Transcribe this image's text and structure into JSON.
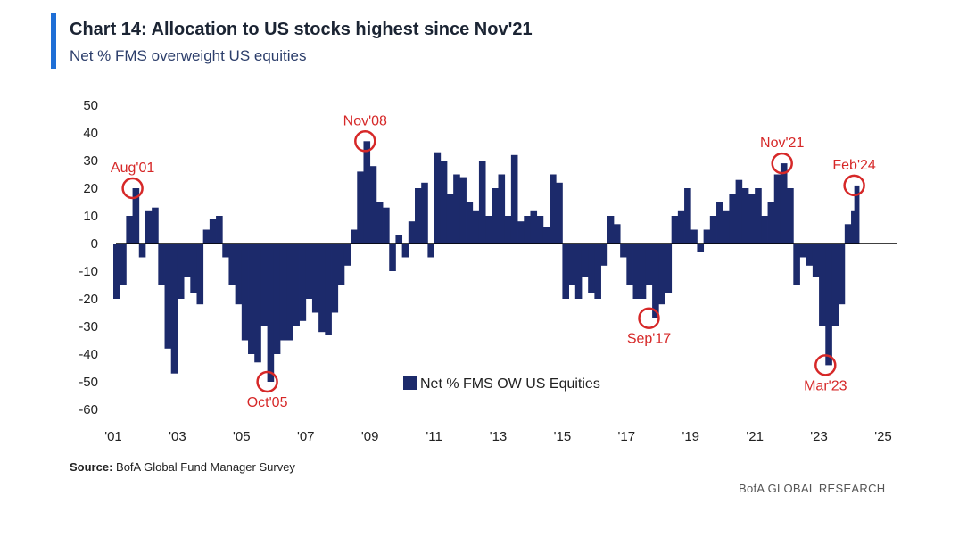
{
  "header": {
    "title": "Chart 14: Allocation to US stocks highest since Nov'21",
    "subtitle": "Net % FMS overweight US equities"
  },
  "footer": {
    "source_label": "Source:",
    "source_text": "BofA Global Fund Manager Survey",
    "brand": "BofA GLOBAL RESEARCH"
  },
  "colors": {
    "bar": "#1c2a6b",
    "annotation": "#d62828",
    "accent": "#1f6fd6",
    "axis": "#000000"
  },
  "chart_data": {
    "type": "bar",
    "title": "Chart 14: Allocation to US stocks highest since Nov'21",
    "subtitle": "Net % FMS overweight US equities",
    "ylim": [
      -60,
      50
    ],
    "yticks": [
      50,
      40,
      30,
      20,
      10,
      0,
      -10,
      -20,
      -30,
      -40,
      -50,
      -60
    ],
    "x_range": [
      2001.0,
      2025.0
    ],
    "xticks": [
      "'01",
      "'03",
      "'05",
      "'07",
      "'09",
      "'11",
      "'13",
      "'15",
      "'17",
      "'19",
      "'21",
      "'23",
      "'25"
    ],
    "legend": {
      "label": "Net % FMS OW US Equities",
      "position": "bottom-center"
    },
    "annotations": [
      {
        "label": "Aug'01",
        "x": 2001.6,
        "y": 20
      },
      {
        "label": "Oct'05",
        "x": 2005.8,
        "y": -50
      },
      {
        "label": "Nov'08",
        "x": 2008.85,
        "y": 37
      },
      {
        "label": "Sep'17",
        "x": 2017.7,
        "y": -27
      },
      {
        "label": "Nov'21",
        "x": 2021.85,
        "y": 29
      },
      {
        "label": "Mar'23",
        "x": 2023.2,
        "y": -44
      },
      {
        "label": "Feb'24",
        "x": 2024.1,
        "y": 21
      }
    ],
    "series": [
      {
        "name": "Net % FMS OW US Equities",
        "points": [
          [
            2001.0,
            -20
          ],
          [
            2001.2,
            -15
          ],
          [
            2001.4,
            10
          ],
          [
            2001.6,
            20
          ],
          [
            2001.8,
            -5
          ],
          [
            2002.0,
            12
          ],
          [
            2002.2,
            13
          ],
          [
            2002.4,
            -15
          ],
          [
            2002.6,
            -38
          ],
          [
            2002.8,
            -47
          ],
          [
            2003.0,
            -20
          ],
          [
            2003.2,
            -12
          ],
          [
            2003.4,
            -18
          ],
          [
            2003.6,
            -22
          ],
          [
            2003.8,
            5
          ],
          [
            2004.0,
            9
          ],
          [
            2004.2,
            10
          ],
          [
            2004.4,
            -5
          ],
          [
            2004.6,
            -15
          ],
          [
            2004.8,
            -22
          ],
          [
            2005.0,
            -35
          ],
          [
            2005.2,
            -40
          ],
          [
            2005.4,
            -43
          ],
          [
            2005.6,
            -30
          ],
          [
            2005.8,
            -50
          ],
          [
            2006.0,
            -40
          ],
          [
            2006.2,
            -35
          ],
          [
            2006.4,
            -35
          ],
          [
            2006.6,
            -30
          ],
          [
            2006.8,
            -28
          ],
          [
            2007.0,
            -20
          ],
          [
            2007.2,
            -25
          ],
          [
            2007.4,
            -32
          ],
          [
            2007.6,
            -33
          ],
          [
            2007.8,
            -25
          ],
          [
            2008.0,
            -15
          ],
          [
            2008.2,
            -8
          ],
          [
            2008.4,
            5
          ],
          [
            2008.6,
            26
          ],
          [
            2008.8,
            37
          ],
          [
            2009.0,
            28
          ],
          [
            2009.2,
            15
          ],
          [
            2009.4,
            13
          ],
          [
            2009.6,
            -10
          ],
          [
            2009.8,
            3
          ],
          [
            2010.0,
            -5
          ],
          [
            2010.2,
            8
          ],
          [
            2010.4,
            20
          ],
          [
            2010.6,
            22
          ],
          [
            2010.8,
            -5
          ],
          [
            2011.0,
            33
          ],
          [
            2011.2,
            30
          ],
          [
            2011.4,
            18
          ],
          [
            2011.6,
            25
          ],
          [
            2011.8,
            24
          ],
          [
            2012.0,
            15
          ],
          [
            2012.2,
            12
          ],
          [
            2012.4,
            30
          ],
          [
            2012.6,
            10
          ],
          [
            2012.8,
            20
          ],
          [
            2013.0,
            25
          ],
          [
            2013.2,
            10
          ],
          [
            2013.4,
            32
          ],
          [
            2013.6,
            8
          ],
          [
            2013.8,
            10
          ],
          [
            2014.0,
            12
          ],
          [
            2014.2,
            10
          ],
          [
            2014.4,
            6
          ],
          [
            2014.6,
            25
          ],
          [
            2014.8,
            22
          ],
          [
            2015.0,
            -20
          ],
          [
            2015.2,
            -15
          ],
          [
            2015.4,
            -20
          ],
          [
            2015.6,
            -12
          ],
          [
            2015.8,
            -18
          ],
          [
            2016.0,
            -20
          ],
          [
            2016.2,
            -8
          ],
          [
            2016.4,
            10
          ],
          [
            2016.6,
            7
          ],
          [
            2016.8,
            -5
          ],
          [
            2017.0,
            -15
          ],
          [
            2017.2,
            -20
          ],
          [
            2017.4,
            -20
          ],
          [
            2017.6,
            -15
          ],
          [
            2017.8,
            -27
          ],
          [
            2018.0,
            -22
          ],
          [
            2018.2,
            -18
          ],
          [
            2018.4,
            10
          ],
          [
            2018.6,
            12
          ],
          [
            2018.8,
            20
          ],
          [
            2019.0,
            5
          ],
          [
            2019.2,
            -3
          ],
          [
            2019.4,
            5
          ],
          [
            2019.6,
            10
          ],
          [
            2019.8,
            15
          ],
          [
            2020.0,
            12
          ],
          [
            2020.2,
            18
          ],
          [
            2020.4,
            23
          ],
          [
            2020.6,
            20
          ],
          [
            2020.8,
            18
          ],
          [
            2021.0,
            20
          ],
          [
            2021.2,
            10
          ],
          [
            2021.4,
            15
          ],
          [
            2021.6,
            25
          ],
          [
            2021.8,
            29
          ],
          [
            2022.0,
            20
          ],
          [
            2022.2,
            -15
          ],
          [
            2022.4,
            -5
          ],
          [
            2022.6,
            -8
          ],
          [
            2022.8,
            -12
          ],
          [
            2023.0,
            -30
          ],
          [
            2023.2,
            -44
          ],
          [
            2023.4,
            -30
          ],
          [
            2023.6,
            -22
          ],
          [
            2023.8,
            7
          ],
          [
            2024.0,
            12
          ],
          [
            2024.1,
            21
          ]
        ]
      }
    ]
  }
}
